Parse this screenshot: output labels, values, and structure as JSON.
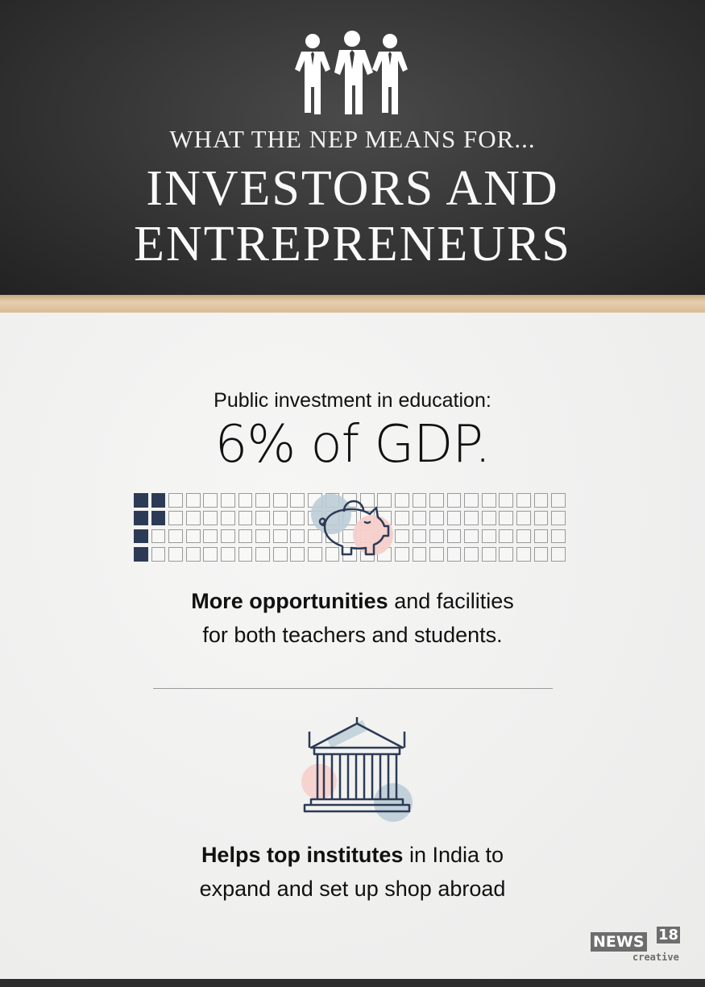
{
  "header": {
    "subtitle": "WHAT THE NEP MEANS FOR...",
    "title_line1": "INVESTORS AND",
    "title_line2": "ENTREPRENEURS",
    "icon": "business-people-icon"
  },
  "investment": {
    "lead": "Public investment in education:",
    "headline": "6% of GDP.",
    "grid": {
      "total": 100,
      "filled": 6,
      "rows": 4,
      "filled_color": "#2c3b55"
    },
    "icon": "piggy-bank-icon",
    "bold": "More opportunities",
    "rest_line1": " and facilities",
    "line2": "for both teachers and students."
  },
  "institutes": {
    "icon": "institution-building-icon",
    "bold": "Helps top institutes",
    "rest_line1": " in India to",
    "line2": "expand and set up shop abroad"
  },
  "logo": {
    "news": "NEWS",
    "number": "18",
    "creative": "creative"
  }
}
